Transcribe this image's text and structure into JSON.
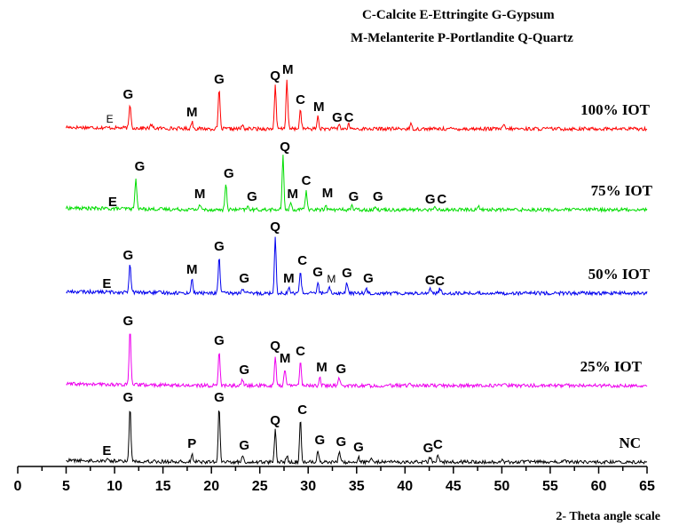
{
  "chart_data": {
    "type": "line",
    "title": "",
    "xlabel": "2- Theta angle scale",
    "ylabel": "",
    "xlim": [
      0,
      65
    ],
    "x_ticks": [
      0,
      5,
      10,
      15,
      20,
      25,
      30,
      35,
      40,
      45,
      50,
      55,
      60,
      65
    ],
    "grid": false,
    "legend": {
      "placement": "top-right",
      "lines": [
        "C-Calcite  E-Ettringite  G-Gypsum",
        "M-Melanterite  P-Portlandite  Q-Quartz"
      ]
    },
    "colors": {
      "100% IOT": "#ff0000",
      "75% IOT": "#00dd00",
      "50% IOT": "#0000ee",
      "25% IOT": "#ee00ee",
      "NC": "#000000"
    },
    "series": [
      {
        "name": "100% IOT",
        "x_range": [
          5,
          65
        ],
        "peaks": [
          {
            "x": 11.6,
            "h": 27
          },
          {
            "x": 13.8,
            "h": 4
          },
          {
            "x": 18.0,
            "h": 8
          },
          {
            "x": 20.8,
            "h": 45
          },
          {
            "x": 23.2,
            "h": 4
          },
          {
            "x": 26.6,
            "h": 48
          },
          {
            "x": 27.8,
            "h": 56
          },
          {
            "x": 29.2,
            "h": 22
          },
          {
            "x": 31.0,
            "h": 14
          },
          {
            "x": 33.2,
            "h": 5
          },
          {
            "x": 34.2,
            "h": 5
          },
          {
            "x": 40.6,
            "h": 5
          },
          {
            "x": 50.2,
            "h": 4
          }
        ],
        "labels": [
          {
            "text": "E",
            "x": 9.5,
            "h": 7,
            "small": true
          },
          {
            "text": "G",
            "x": 11.4,
            "h": 34
          },
          {
            "text": "M",
            "x": 18.0,
            "h": 14
          },
          {
            "text": "G",
            "x": 20.8,
            "h": 51
          },
          {
            "text": "Q",
            "x": 26.6,
            "h": 55
          },
          {
            "text": "M",
            "x": 27.9,
            "h": 62
          },
          {
            "text": "C",
            "x": 29.2,
            "h": 28
          },
          {
            "text": "M",
            "x": 31.1,
            "h": 20
          },
          {
            "text": "G",
            "x": 33.0,
            "h": 8
          },
          {
            "text": "C",
            "x": 34.2,
            "h": 8
          }
        ]
      },
      {
        "name": "75% IOT",
        "x_range": [
          5,
          65
        ],
        "peaks": [
          {
            "x": 12.2,
            "h": 36
          },
          {
            "x": 18.8,
            "h": 6
          },
          {
            "x": 21.5,
            "h": 30
          },
          {
            "x": 23.8,
            "h": 4
          },
          {
            "x": 27.4,
            "h": 60
          },
          {
            "x": 28.2,
            "h": 8
          },
          {
            "x": 29.8,
            "h": 22
          },
          {
            "x": 31.8,
            "h": 6
          },
          {
            "x": 34.5,
            "h": 5
          },
          {
            "x": 37.0,
            "h": 4
          },
          {
            "x": 43.0,
            "h": 3
          },
          {
            "x": 47.6,
            "h": 5
          }
        ],
        "labels": [
          {
            "text": "E",
            "x": 9.8,
            "h": 4
          },
          {
            "text": "G",
            "x": 12.6,
            "h": 44
          },
          {
            "text": "M",
            "x": 18.8,
            "h": 13
          },
          {
            "text": "G",
            "x": 21.8,
            "h": 36
          },
          {
            "text": "G",
            "x": 24.2,
            "h": 10
          },
          {
            "text": "Q",
            "x": 27.6,
            "h": 66
          },
          {
            "text": "M",
            "x": 28.4,
            "h": 13
          },
          {
            "text": "C",
            "x": 29.8,
            "h": 28
          },
          {
            "text": "M",
            "x": 32.0,
            "h": 14
          },
          {
            "text": "G",
            "x": 34.7,
            "h": 10
          },
          {
            "text": "G",
            "x": 37.2,
            "h": 10
          },
          {
            "text": "G",
            "x": 42.6,
            "h": 7
          },
          {
            "text": "C",
            "x": 43.8,
            "h": 7
          }
        ]
      },
      {
        "name": "50% IOT",
        "x_range": [
          5,
          65
        ],
        "peaks": [
          {
            "x": 11.6,
            "h": 32
          },
          {
            "x": 18.0,
            "h": 16
          },
          {
            "x": 20.8,
            "h": 42
          },
          {
            "x": 23.2,
            "h": 6
          },
          {
            "x": 26.6,
            "h": 64
          },
          {
            "x": 28.0,
            "h": 6
          },
          {
            "x": 29.2,
            "h": 26
          },
          {
            "x": 31.0,
            "h": 12
          },
          {
            "x": 32.2,
            "h": 6
          },
          {
            "x": 34.0,
            "h": 12
          },
          {
            "x": 36.0,
            "h": 6
          },
          {
            "x": 42.6,
            "h": 6
          },
          {
            "x": 43.6,
            "h": 5
          }
        ],
        "labels": [
          {
            "text": "E",
            "x": 9.2,
            "h": 6
          },
          {
            "text": "G",
            "x": 11.4,
            "h": 38
          },
          {
            "text": "M",
            "x": 18.0,
            "h": 22
          },
          {
            "text": "G",
            "x": 20.8,
            "h": 48
          },
          {
            "text": "G",
            "x": 23.4,
            "h": 12
          },
          {
            "text": "Q",
            "x": 26.6,
            "h": 70
          },
          {
            "text": "M",
            "x": 28.0,
            "h": 12
          },
          {
            "text": "C",
            "x": 29.4,
            "h": 32
          },
          {
            "text": "G",
            "x": 31.0,
            "h": 19
          },
          {
            "text": "M",
            "x": 32.4,
            "h": 12,
            "small": true
          },
          {
            "text": "G",
            "x": 34.0,
            "h": 18
          },
          {
            "text": "G",
            "x": 36.2,
            "h": 12
          },
          {
            "text": "G",
            "x": 42.6,
            "h": 10
          },
          {
            "text": "C",
            "x": 43.6,
            "h": 9
          }
        ]
      },
      {
        "name": "25% IOT",
        "x_range": [
          5,
          65
        ],
        "peaks": [
          {
            "x": 11.6,
            "h": 62
          },
          {
            "x": 20.8,
            "h": 40
          },
          {
            "x": 23.2,
            "h": 7
          },
          {
            "x": 26.6,
            "h": 34
          },
          {
            "x": 27.6,
            "h": 20
          },
          {
            "x": 29.2,
            "h": 28
          },
          {
            "x": 31.2,
            "h": 10
          },
          {
            "x": 33.2,
            "h": 8
          },
          {
            "x": 40.6,
            "h": 3
          },
          {
            "x": 50.2,
            "h": 3
          },
          {
            "x": 56.8,
            "h": 2
          }
        ],
        "labels": [
          {
            "text": "G",
            "x": 11.4,
            "h": 68
          },
          {
            "text": "G",
            "x": 20.8,
            "h": 46
          },
          {
            "text": "G",
            "x": 23.4,
            "h": 13
          },
          {
            "text": "Q",
            "x": 26.6,
            "h": 40
          },
          {
            "text": "M",
            "x": 27.6,
            "h": 26
          },
          {
            "text": "C",
            "x": 29.2,
            "h": 34
          },
          {
            "text": "M",
            "x": 31.4,
            "h": 16
          },
          {
            "text": "G",
            "x": 33.4,
            "h": 14
          }
        ]
      },
      {
        "name": "NC",
        "x_range": [
          5,
          65
        ],
        "peaks": [
          {
            "x": 9.2,
            "h": 3
          },
          {
            "x": 11.6,
            "h": 62
          },
          {
            "x": 18.0,
            "h": 10
          },
          {
            "x": 20.8,
            "h": 62
          },
          {
            "x": 23.2,
            "h": 8
          },
          {
            "x": 26.6,
            "h": 36
          },
          {
            "x": 27.8,
            "h": 8
          },
          {
            "x": 29.2,
            "h": 48
          },
          {
            "x": 31.0,
            "h": 14
          },
          {
            "x": 33.2,
            "h": 12
          },
          {
            "x": 35.2,
            "h": 6
          },
          {
            "x": 36.6,
            "h": 5
          },
          {
            "x": 42.6,
            "h": 5
          },
          {
            "x": 43.4,
            "h": 9
          },
          {
            "x": 50.0,
            "h": 3
          },
          {
            "x": 56.6,
            "h": 2
          }
        ],
        "labels": [
          {
            "text": "E",
            "x": 9.2,
            "h": 8
          },
          {
            "text": "G",
            "x": 11.4,
            "h": 68
          },
          {
            "text": "P",
            "x": 18.0,
            "h": 16
          },
          {
            "text": "G",
            "x": 20.8,
            "h": 68
          },
          {
            "text": "G",
            "x": 23.4,
            "h": 14
          },
          {
            "text": "Q",
            "x": 26.6,
            "h": 42
          },
          {
            "text": "C",
            "x": 29.4,
            "h": 54
          },
          {
            "text": "G",
            "x": 31.2,
            "h": 20
          },
          {
            "text": "G",
            "x": 33.4,
            "h": 18
          },
          {
            "text": "G",
            "x": 35.2,
            "h": 12
          },
          {
            "text": "G",
            "x": 42.4,
            "h": 11
          },
          {
            "text": "C",
            "x": 43.4,
            "h": 15
          }
        ]
      }
    ]
  }
}
